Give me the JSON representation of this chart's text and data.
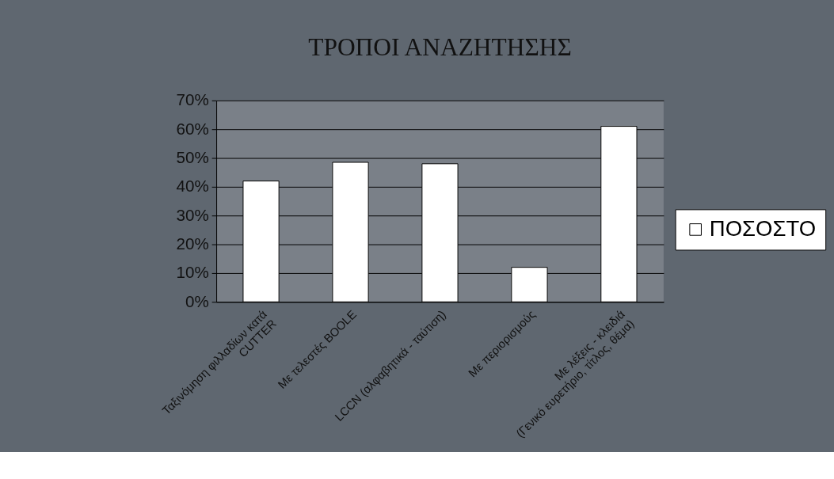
{
  "chart_data": {
    "type": "bar",
    "title": "ΤΡΟΠΟΙ ΑΝΑΖΗΤΗΣΗΣ",
    "categories": [
      "Ταξινόμηση φιλλαδίων κατά\nCUTTER",
      "Με τελεστές BOOLE",
      "LCCN (αλφαβητικά - ταύτιση)",
      "Με περιορισμούς",
      "Με λέξεις - κλειδιά\n(Γενικό ευρετήριο, τίτλος, θέμα)"
    ],
    "series": [
      {
        "name": "ΠΟΣΟΣΤΟ",
        "color": "#ffffff",
        "values": [
          42,
          48.5,
          48,
          12,
          61
        ]
      }
    ],
    "ylim": [
      0,
      70
    ],
    "yticks": [
      {
        "value": 0,
        "label": "0%"
      },
      {
        "value": 10,
        "label": "10%"
      },
      {
        "value": 20,
        "label": "20%"
      },
      {
        "value": 30,
        "label": "30%"
      },
      {
        "value": 40,
        "label": "40%"
      },
      {
        "value": 50,
        "label": "50%"
      },
      {
        "value": 60,
        "label": "60%"
      },
      {
        "value": 70,
        "label": "70%"
      }
    ],
    "grid": "y",
    "legend": "right"
  }
}
